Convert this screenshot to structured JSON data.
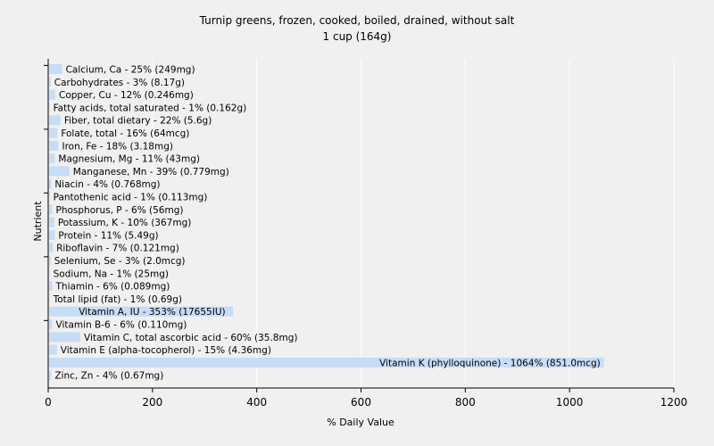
{
  "chart_data": {
    "type": "bar",
    "orientation": "horizontal",
    "title": "Turnip greens, frozen, cooked, boiled, drained, without salt",
    "subtitle": "1 cup (164g)",
    "xlabel": "% Daily Value",
    "ylabel": "Nutrient",
    "xlim": [
      0,
      1200
    ],
    "xticks": [
      0,
      200,
      400,
      600,
      800,
      1000,
      1200
    ],
    "grid": true,
    "bar_color": "#c6dcf7",
    "grid_color": "#ffffff",
    "background_color": "#f0f0f0",
    "categories": [
      "Calcium, Ca",
      "Carbohydrates",
      "Copper, Cu",
      "Fatty acids, total saturated",
      "Fiber, total dietary",
      "Folate, total",
      "Iron, Fe",
      "Magnesium, Mg",
      "Manganese, Mn",
      "Niacin",
      "Pantothenic acid",
      "Phosphorus, P",
      "Potassium, K",
      "Protein",
      "Riboflavin",
      "Selenium, Se",
      "Sodium, Na",
      "Thiamin",
      "Total lipid (fat)",
      "Vitamin A, IU",
      "Vitamin B-6",
      "Vitamin C, total ascorbic acid",
      "Vitamin E (alpha-tocopherol)",
      "Vitamin K (phylloquinone)",
      "Zinc, Zn"
    ],
    "values": [
      25,
      3,
      12,
      1,
      22,
      16,
      18,
      11,
      39,
      4,
      1,
      6,
      10,
      11,
      7,
      3,
      1,
      6,
      1,
      353,
      6,
      60,
      15,
      1064,
      4
    ],
    "amounts": [
      "249mg",
      "8.17g",
      "0.246mg",
      "0.162g",
      "5.6g",
      "64mcg",
      "3.18mg",
      "43mg",
      "0.779mg",
      "0.768mg",
      "0.113mg",
      "56mg",
      "367mg",
      "5.49g",
      "0.121mg",
      "2.0mcg",
      "25mg",
      "0.089mg",
      "0.69g",
      "17655IU",
      "0.110mg",
      "35.8mg",
      "4.36mg",
      "851.0mcg",
      "0.67mg"
    ],
    "labels": [
      "Calcium, Ca - 25% (249mg)",
      "Carbohydrates - 3% (8.17g)",
      "Copper, Cu - 12% (0.246mg)",
      "Fatty acids, total saturated - 1% (0.162g)",
      "Fiber, total dietary - 22% (5.6g)",
      "Folate, total - 16% (64mcg)",
      "Iron, Fe - 18% (3.18mg)",
      "Magnesium, Mg - 11% (43mg)",
      "Manganese, Mn - 39% (0.779mg)",
      "Niacin - 4% (0.768mg)",
      "Pantothenic acid - 1% (0.113mg)",
      "Phosphorus, P - 6% (56mg)",
      "Potassium, K - 10% (367mg)",
      "Protein - 11% (5.49g)",
      "Riboflavin - 7% (0.121mg)",
      "Selenium, Se - 3% (2.0mcg)",
      "Sodium, Na - 1% (25mg)",
      "Thiamin - 6% (0.089mg)",
      "Total lipid (fat) - 1% (0.69g)",
      "Vitamin A, IU - 353% (17655IU)",
      "Vitamin B-6 - 6% (0.110mg)",
      "Vitamin C, total ascorbic acid - 60% (35.8mg)",
      "Vitamin E (alpha-tocopherol) - 15% (4.36mg)",
      "Vitamin K (phylloquinone) - 1064% (851.0mcg)",
      "Zinc, Zn - 4% (0.67mg)"
    ]
  }
}
